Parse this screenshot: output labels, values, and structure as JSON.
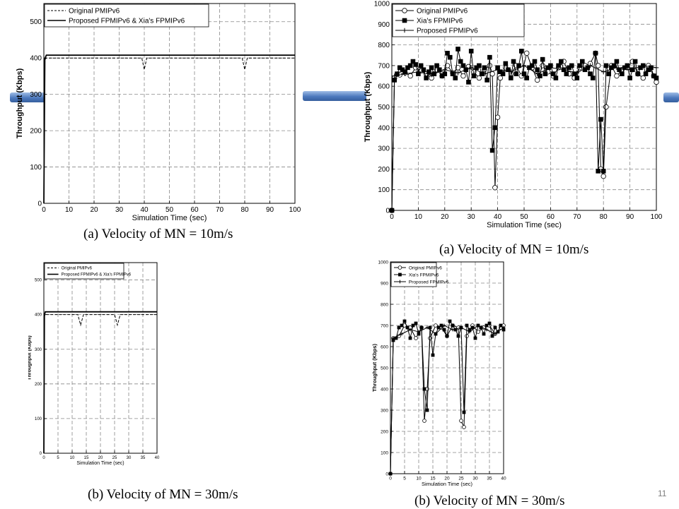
{
  "page": {
    "slide_number": "11",
    "accent": "#4c78bd"
  },
  "chart_data": [
    {
      "type": "line",
      "xlabel": "Simulation Time (sec)",
      "ylabel": "Throughput (Kbps)",
      "xlim": [
        0,
        100
      ],
      "ylim": [
        0,
        550
      ],
      "xticks": [
        0,
        10,
        20,
        30,
        40,
        50,
        60,
        70,
        80,
        90,
        100
      ],
      "yticks": [
        0,
        100,
        200,
        300,
        400,
        500
      ],
      "grid": true,
      "legend": "top-left",
      "caption": "(a) Velocity of MN = 10m/s",
      "series": [
        {
          "name": "Original PMIPv6",
          "style": "dashed",
          "color": "#000000",
          "x": [
            0,
            0.4,
            1,
            39,
            40,
            41,
            79,
            80,
            81,
            100
          ],
          "y": [
            0,
            395,
            400,
            400,
            368,
            400,
            400,
            368,
            400,
            400
          ]
        },
        {
          "name": "Proposed FPMIPv6 & Xia's FPMIPv6",
          "style": "solid",
          "color": "#000000",
          "x": [
            0,
            0.4,
            1,
            100
          ],
          "y": [
            0,
            398,
            408,
            408
          ]
        }
      ]
    },
    {
      "type": "line",
      "xlabel": "Simulation Time (sec)",
      "ylabel": "Throughput (Kbps)",
      "xlim": [
        0,
        100
      ],
      "ylim": [
        0,
        1000
      ],
      "xticks": [
        0,
        10,
        20,
        30,
        40,
        50,
        60,
        70,
        80,
        90,
        100
      ],
      "yticks": [
        0,
        100,
        200,
        300,
        400,
        500,
        600,
        700,
        800,
        900,
        1000
      ],
      "grid": true,
      "legend": "top-left",
      "caption": "(a) Velocity of MN = 10m/s",
      "series": [
        {
          "name": "Original PMIPv6",
          "marker": "circle",
          "color": "#000000",
          "x": [
            0,
            1,
            3,
            5,
            7,
            9,
            11,
            13,
            15,
            17,
            19,
            21,
            23,
            25,
            27,
            29,
            31,
            33,
            35,
            37,
            38,
            39,
            40,
            41,
            43,
            45,
            47,
            49,
            51,
            53,
            55,
            57,
            59,
            61,
            63,
            65,
            67,
            69,
            71,
            73,
            75,
            77,
            78,
            79,
            80,
            81,
            83,
            85,
            87,
            89,
            91,
            93,
            95,
            97,
            99,
            100
          ],
          "y": [
            0,
            640,
            655,
            665,
            650,
            690,
            675,
            660,
            640,
            680,
            650,
            700,
            665,
            690,
            650,
            695,
            670,
            640,
            680,
            700,
            660,
            110,
            450,
            640,
            690,
            660,
            700,
            650,
            760,
            690,
            630,
            700,
            670,
            650,
            690,
            720,
            660,
            640,
            690,
            700,
            710,
            760,
            700,
            200,
            165,
            500,
            700,
            650,
            680,
            690,
            720,
            660,
            640,
            700,
            650,
            620
          ]
        },
        {
          "name": "Xia's FPMIPv6",
          "marker": "square",
          "color": "#000000",
          "x": [
            0,
            1,
            2,
            3,
            4,
            5,
            6,
            7,
            8,
            9,
            10,
            11,
            12,
            13,
            14,
            15,
            16,
            17,
            18,
            19,
            20,
            21,
            22,
            23,
            24,
            25,
            26,
            27,
            28,
            29,
            30,
            31,
            32,
            33,
            34,
            35,
            36,
            37,
            38,
            39,
            40,
            41,
            42,
            43,
            44,
            45,
            46,
            47,
            48,
            49,
            50,
            51,
            52,
            53,
            54,
            55,
            56,
            57,
            58,
            59,
            60,
            61,
            62,
            63,
            64,
            65,
            66,
            67,
            68,
            69,
            70,
            71,
            72,
            73,
            74,
            75,
            76,
            77,
            78,
            79,
            80,
            81,
            82,
            83,
            84,
            85,
            86,
            87,
            88,
            89,
            90,
            91,
            92,
            93,
            94,
            95,
            96,
            97,
            98,
            99,
            100
          ],
          "y": [
            0,
            630,
            660,
            690,
            680,
            670,
            690,
            700,
            720,
            705,
            660,
            700,
            680,
            640,
            670,
            690,
            660,
            700,
            680,
            650,
            660,
            760,
            740,
            660,
            640,
            780,
            720,
            700,
            680,
            620,
            770,
            650,
            690,
            700,
            660,
            690,
            630,
            740,
            290,
            400,
            690,
            670,
            660,
            710,
            680,
            640,
            720,
            660,
            700,
            770,
            660,
            640,
            690,
            700,
            720,
            680,
            650,
            730,
            660,
            690,
            700,
            660,
            640,
            700,
            720,
            680,
            660,
            690,
            700,
            660,
            640,
            700,
            720,
            680,
            690,
            660,
            640,
            760,
            190,
            440,
            190,
            700,
            660,
            690,
            700,
            720,
            680,
            660,
            690,
            700,
            640,
            680,
            720,
            660,
            690,
            700,
            660,
            680,
            690,
            650,
            640
          ]
        },
        {
          "name": "Proposed FPMIPv6",
          "marker": "plus",
          "color": "#000000",
          "x": [
            0,
            1,
            5,
            10,
            15,
            20,
            25,
            30,
            35,
            40,
            45,
            50,
            55,
            60,
            65,
            70,
            75,
            80,
            85,
            90,
            95,
            100
          ],
          "y": [
            0,
            650,
            660,
            670,
            655,
            680,
            665,
            690,
            660,
            680,
            670,
            700,
            660,
            690,
            680,
            665,
            700,
            670,
            690,
            680,
            700,
            690
          ]
        }
      ]
    },
    {
      "type": "line",
      "xlabel": "Simulation Time (sec)",
      "ylabel": "Throughput (Kbps)",
      "xlim": [
        0,
        40
      ],
      "ylim": [
        0,
        550
      ],
      "xticks": [
        0,
        5,
        10,
        15,
        20,
        25,
        30,
        35,
        40
      ],
      "yticks": [
        0,
        100,
        200,
        300,
        400,
        500
      ],
      "grid": true,
      "legend": "top-left",
      "caption": "(b) Velocity of MN = 30m/s",
      "series": [
        {
          "name": "Original PMIPv6",
          "style": "dashed",
          "color": "#000000",
          "x": [
            0,
            0.2,
            0.5,
            12,
            13,
            14,
            25,
            26,
            27,
            40
          ],
          "y": [
            0,
            395,
            400,
            400,
            370,
            400,
            400,
            370,
            400,
            400
          ]
        },
        {
          "name": "Proposed FPMIPv6 & Xia's FPMIPv6",
          "style": "solid",
          "color": "#000000",
          "x": [
            0,
            0.2,
            0.5,
            40
          ],
          "y": [
            0,
            398,
            408,
            408
          ]
        }
      ]
    },
    {
      "type": "line",
      "xlabel": "Simulation Time (sec)",
      "ylabel": "Throughput (Kbps)",
      "xlim": [
        0,
        40
      ],
      "ylim": [
        0,
        1000
      ],
      "xticks": [
        0,
        5,
        10,
        15,
        20,
        25,
        30,
        35,
        40
      ],
      "yticks": [
        0,
        100,
        200,
        300,
        400,
        500,
        600,
        700,
        800,
        900,
        1000
      ],
      "grid": true,
      "legend": "top-left",
      "caption": "(b) Velocity of MN = 30m/s",
      "series": [
        {
          "name": "Original PMIPv6",
          "marker": "circle",
          "color": "#000000",
          "x": [
            0,
            1,
            3,
            5,
            7,
            9,
            11,
            12,
            13,
            14,
            16,
            18,
            20,
            22,
            24,
            25,
            26,
            27,
            29,
            31,
            33,
            35,
            37,
            39,
            40
          ],
          "y": [
            0,
            640,
            650,
            700,
            690,
            640,
            690,
            250,
            400,
            640,
            700,
            690,
            650,
            700,
            690,
            250,
            220,
            650,
            700,
            670,
            690,
            700,
            660,
            690,
            700
          ]
        },
        {
          "name": "Xia's FPMIPv6",
          "marker": "square",
          "color": "#000000",
          "x": [
            0,
            1,
            2,
            3,
            4,
            5,
            6,
            7,
            8,
            9,
            10,
            11,
            12,
            13,
            14,
            15,
            16,
            17,
            18,
            19,
            20,
            21,
            22,
            23,
            24,
            25,
            26,
            27,
            28,
            29,
            30,
            31,
            32,
            33,
            34,
            35,
            36,
            37,
            38,
            39,
            40
          ],
          "y": [
            0,
            630,
            640,
            690,
            700,
            720,
            690,
            640,
            700,
            710,
            660,
            690,
            400,
            300,
            690,
            560,
            660,
            690,
            700,
            680,
            650,
            720,
            700,
            680,
            650,
            690,
            290,
            700,
            680,
            690,
            640,
            700,
            690,
            660,
            700,
            710,
            650,
            690,
            670,
            700,
            680
          ]
        },
        {
          "name": "Proposed FPMIPv6",
          "marker": "plus",
          "color": "#000000",
          "x": [
            0,
            1,
            4,
            7,
            10,
            13,
            16,
            19,
            22,
            25,
            28,
            31,
            34,
            37,
            40
          ],
          "y": [
            0,
            640,
            660,
            680,
            670,
            690,
            660,
            700,
            680,
            690,
            670,
            700,
            680,
            660,
            690
          ]
        }
      ]
    }
  ]
}
